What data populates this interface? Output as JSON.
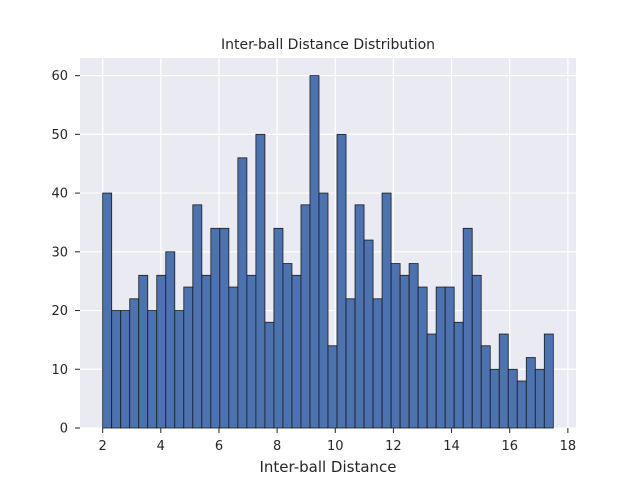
{
  "chart_data": {
    "type": "bar",
    "title": "Inter-ball Distance Distribution",
    "xlabel": "Inter-ball Distance",
    "ylabel": "",
    "xlim": [
      1.22,
      18.28
    ],
    "ylim": [
      0,
      63
    ],
    "xticks": [
      2,
      4,
      6,
      8,
      10,
      12,
      14,
      16,
      18
    ],
    "yticks": [
      0,
      10,
      20,
      30,
      40,
      50,
      60
    ],
    "grid": true,
    "bin_start": 2.0,
    "bin_width": 0.31,
    "values": [
      40,
      20,
      20,
      22,
      26,
      20,
      26,
      30,
      20,
      24,
      38,
      26,
      34,
      34,
      24,
      46,
      26,
      50,
      18,
      34,
      28,
      26,
      38,
      60,
      40,
      14,
      50,
      22,
      38,
      32,
      22,
      40,
      28,
      26,
      28,
      24,
      16,
      24,
      24,
      18,
      34,
      26,
      14,
      10,
      16,
      10,
      8,
      12,
      10,
      16
    ],
    "colors": {
      "bar_fill": "#4c72b0",
      "bar_edge": "#1a1a1a",
      "plot_bg": "#eaeaf2",
      "grid": "#ffffff",
      "text": "#262626"
    }
  }
}
